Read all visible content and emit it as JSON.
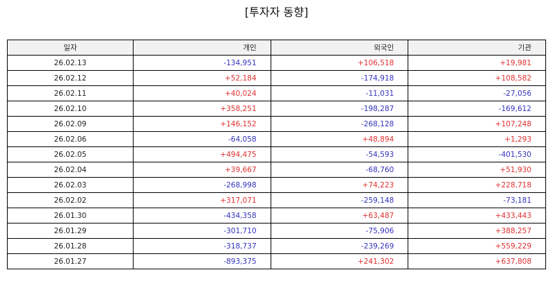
{
  "title": "[투자자 동향]",
  "table": {
    "headers": {
      "date": "일자",
      "individual": "개인",
      "foreign": "외국인",
      "institution": "기관"
    },
    "rows": [
      {
        "date": "26.02.13",
        "individual": "-134,951",
        "foreign": "+106,518",
        "institution": "+19,981"
      },
      {
        "date": "26.02.12",
        "individual": "+52,184",
        "foreign": "-174,918",
        "institution": "+108,582"
      },
      {
        "date": "26.02.11",
        "individual": "+40,024",
        "foreign": "-11,031",
        "institution": "-27,056"
      },
      {
        "date": "26.02.10",
        "individual": "+358,251",
        "foreign": "-198,287",
        "institution": "-169,612"
      },
      {
        "date": "26.02.09",
        "individual": "+146,152",
        "foreign": "-268,128",
        "institution": "+107,248"
      },
      {
        "date": "26.02.06",
        "individual": "-64,058",
        "foreign": "+48,894",
        "institution": "+1,293"
      },
      {
        "date": "26.02.05",
        "individual": "+494,475",
        "foreign": "-54,593",
        "institution": "-401,530"
      },
      {
        "date": "26.02.04",
        "individual": "+39,667",
        "foreign": "-68,760",
        "institution": "+51,930"
      },
      {
        "date": "26.02.03",
        "individual": "-268,998",
        "foreign": "+74,223",
        "institution": "+228,718"
      },
      {
        "date": "26.02.02",
        "individual": "+317,071",
        "foreign": "-259,148",
        "institution": "-73,181"
      },
      {
        "date": "26.01.30",
        "individual": "-434,358",
        "foreign": "+63,487",
        "institution": "+433,443"
      },
      {
        "date": "26.01.29",
        "individual": "-301,710",
        "foreign": "-75,906",
        "institution": "+388,257"
      },
      {
        "date": "26.01.28",
        "individual": "-318,737",
        "foreign": "-239,269",
        "institution": "+559,229"
      },
      {
        "date": "26.01.27",
        "individual": "-893,375",
        "foreign": "+241,302",
        "institution": "+637,808"
      }
    ]
  },
  "colors": {
    "positive": "#e03030",
    "negative": "#3333bb",
    "header_background": "#f2f2f2",
    "border": "#000000"
  }
}
